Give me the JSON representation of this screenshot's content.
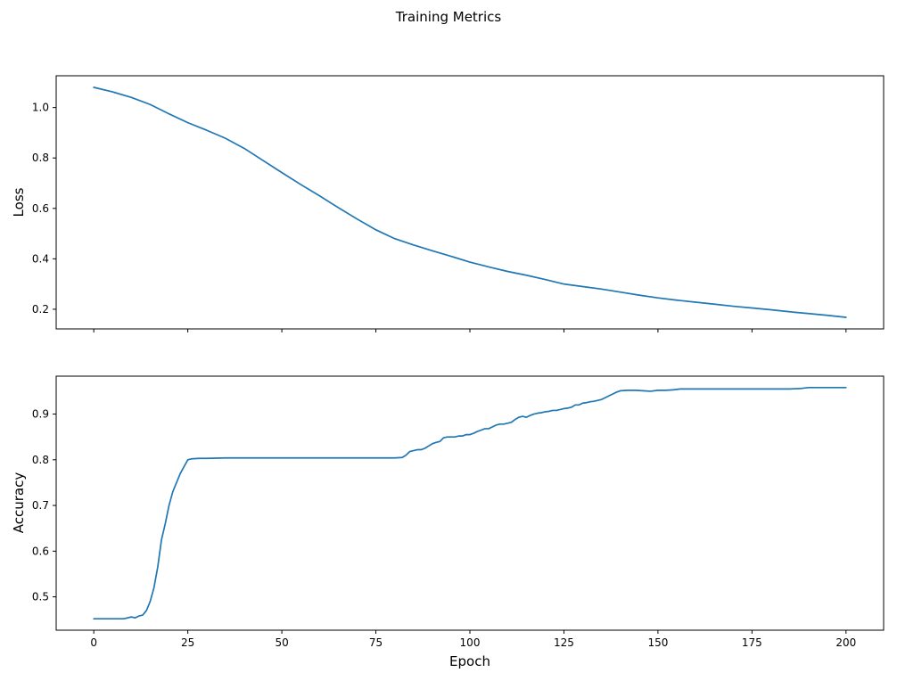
{
  "figure": {
    "title": "Training Metrics",
    "background": "#ffffff",
    "line_color": "#1f77b4",
    "spine_color": "#000000"
  },
  "chart_data": [
    {
      "type": "line",
      "title": "",
      "xlabel": "",
      "ylabel": "Loss",
      "legend": "off",
      "grid": "off",
      "xlim": [
        -10,
        210
      ],
      "ylim": [
        0.122,
        1.126
      ],
      "ticks": {
        "x": [
          0,
          25,
          50,
          75,
          100,
          125,
          150,
          175,
          200
        ],
        "x_labels": [
          "",
          "",
          "",
          "",
          "",
          "",
          "",
          "",
          ""
        ],
        "y": [
          0.2,
          0.4,
          0.6,
          0.8,
          1.0
        ],
        "y_labels": [
          "0.2",
          "0.4",
          "0.6",
          "0.8",
          "1.0"
        ]
      },
      "x": [
        0,
        5,
        10,
        15,
        20,
        25,
        30,
        35,
        40,
        45,
        50,
        55,
        60,
        65,
        70,
        75,
        80,
        85,
        90,
        95,
        100,
        105,
        110,
        115,
        120,
        125,
        130,
        135,
        140,
        145,
        150,
        155,
        160,
        165,
        170,
        175,
        180,
        185,
        190,
        195,
        200
      ],
      "series": [
        {
          "name": "loss",
          "values": [
            1.08,
            1.062,
            1.04,
            1.012,
            0.975,
            0.94,
            0.91,
            0.878,
            0.838,
            0.79,
            0.742,
            0.695,
            0.65,
            0.603,
            0.558,
            0.515,
            0.48,
            0.455,
            0.432,
            0.41,
            0.387,
            0.368,
            0.35,
            0.335,
            0.318,
            0.3,
            0.29,
            0.28,
            0.268,
            0.256,
            0.245,
            0.236,
            0.228,
            0.22,
            0.212,
            0.205,
            0.198,
            0.19,
            0.183,
            0.176,
            0.168
          ]
        }
      ]
    },
    {
      "type": "line",
      "title": "",
      "xlabel": "Epoch",
      "ylabel": "Accuracy",
      "legend": "off",
      "grid": "off",
      "xlim": [
        -10,
        210
      ],
      "ylim": [
        0.427,
        0.983
      ],
      "ticks": {
        "x": [
          0,
          25,
          50,
          75,
          100,
          125,
          150,
          175,
          200
        ],
        "x_labels": [
          "0",
          "25",
          "50",
          "75",
          "100",
          "125",
          "150",
          "175",
          "200"
        ],
        "y": [
          0.5,
          0.6,
          0.7,
          0.8,
          0.9
        ],
        "y_labels": [
          "0.5",
          "0.6",
          "0.7",
          "0.8",
          "0.9"
        ]
      },
      "x": [
        0,
        4,
        8,
        10,
        11,
        12,
        13,
        14,
        15,
        16,
        17,
        18,
        19,
        20,
        21,
        22,
        23,
        24,
        25,
        26,
        28,
        30,
        35,
        40,
        50,
        60,
        70,
        80,
        82,
        83,
        84,
        85,
        86,
        87,
        88,
        89,
        90,
        91,
        92,
        93,
        94,
        95,
        96,
        97,
        98,
        99,
        100,
        101,
        102,
        103,
        104,
        105,
        106,
        107,
        108,
        109,
        110,
        111,
        112,
        113,
        114,
        115,
        116,
        117,
        118,
        119,
        120,
        121,
        122,
        123,
        124,
        125,
        126,
        127,
        128,
        129,
        130,
        131,
        132,
        133,
        134,
        135,
        136,
        137,
        138,
        139,
        140,
        142,
        144,
        146,
        148,
        150,
        152,
        154,
        156,
        158,
        160,
        165,
        170,
        175,
        180,
        185,
        188,
        190,
        195,
        200
      ],
      "series": [
        {
          "name": "accuracy",
          "values": [
            0.452,
            0.452,
            0.452,
            0.456,
            0.454,
            0.458,
            0.46,
            0.47,
            0.49,
            0.52,
            0.565,
            0.625,
            0.66,
            0.7,
            0.73,
            0.75,
            0.77,
            0.785,
            0.8,
            0.802,
            0.803,
            0.803,
            0.804,
            0.804,
            0.804,
            0.804,
            0.804,
            0.804,
            0.805,
            0.81,
            0.818,
            0.82,
            0.822,
            0.822,
            0.825,
            0.83,
            0.835,
            0.838,
            0.84,
            0.848,
            0.85,
            0.85,
            0.85,
            0.852,
            0.852,
            0.855,
            0.855,
            0.858,
            0.862,
            0.865,
            0.868,
            0.868,
            0.872,
            0.876,
            0.878,
            0.878,
            0.88,
            0.882,
            0.888,
            0.893,
            0.895,
            0.893,
            0.897,
            0.9,
            0.902,
            0.903,
            0.905,
            0.906,
            0.908,
            0.908,
            0.91,
            0.912,
            0.913,
            0.915,
            0.92,
            0.92,
            0.924,
            0.925,
            0.927,
            0.928,
            0.93,
            0.932,
            0.936,
            0.94,
            0.944,
            0.948,
            0.951,
            0.952,
            0.952,
            0.951,
            0.95,
            0.952,
            0.952,
            0.953,
            0.955,
            0.955,
            0.955,
            0.955,
            0.955,
            0.955,
            0.955,
            0.955,
            0.956,
            0.958,
            0.958,
            0.958
          ]
        }
      ]
    }
  ]
}
